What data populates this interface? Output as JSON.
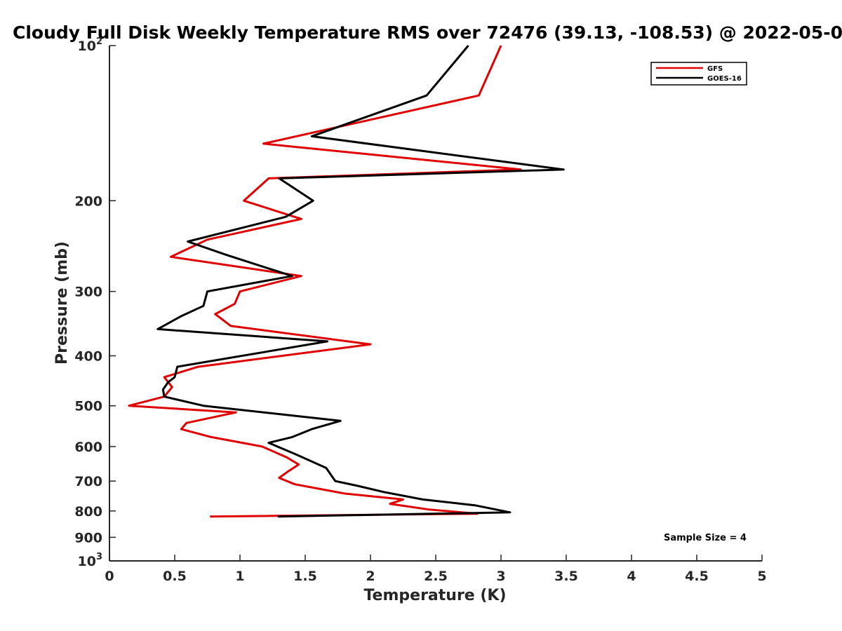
{
  "chart_data": {
    "type": "line",
    "title": "Cloudy Full Disk Weekly Temperature RMS over 72476 (39.13, -108.53) @ 2022-05-0",
    "xlabel": "Temperature (K)",
    "ylabel": "Pressure (mb)",
    "xlim": [
      0,
      5
    ],
    "ylim": [
      100,
      1000
    ],
    "yscale": "log",
    "yreversed": true,
    "grid": false,
    "legend_position": "top-right",
    "x_ticks": [
      "0",
      "0.5",
      "1",
      "1.5",
      "2",
      "2.5",
      "3",
      "3.5",
      "4",
      "4.5",
      "5"
    ],
    "x_tick_values": [
      0,
      0.5,
      1,
      1.5,
      2,
      2.5,
      3,
      3.5,
      4,
      4.5,
      5
    ],
    "y_ticks": [
      {
        "value": 100,
        "base": "10",
        "exp": "2"
      },
      {
        "value": 200,
        "label": "200"
      },
      {
        "value": 300,
        "label": "300"
      },
      {
        "value": 400,
        "label": "400"
      },
      {
        "value": 500,
        "label": "500"
      },
      {
        "value": 600,
        "label": "600"
      },
      {
        "value": 700,
        "label": "700"
      },
      {
        "value": 800,
        "label": "800"
      },
      {
        "value": 900,
        "label": "900"
      },
      {
        "value": 1000,
        "base": "10",
        "exp": "3"
      }
    ],
    "series": [
      {
        "name": "GFS",
        "color": "#e00000",
        "points": [
          [
            3.0,
            100
          ],
          [
            2.83,
            125
          ],
          [
            1.18,
            155
          ],
          [
            3.15,
            174
          ],
          [
            1.22,
            181
          ],
          [
            1.03,
            200
          ],
          [
            1.47,
            217
          ],
          [
            0.75,
            238
          ],
          [
            0.47,
            257
          ],
          [
            1.47,
            280
          ],
          [
            1.0,
            300
          ],
          [
            0.96,
            317
          ],
          [
            0.81,
            332
          ],
          [
            0.93,
            350
          ],
          [
            2.0,
            380
          ],
          [
            0.68,
            420
          ],
          [
            0.42,
            440
          ],
          [
            0.48,
            460
          ],
          [
            0.42,
            480
          ],
          [
            0.15,
            500
          ],
          [
            0.97,
            515
          ],
          [
            0.59,
            540
          ],
          [
            0.55,
            555
          ],
          [
            0.78,
            575
          ],
          [
            1.17,
            600
          ],
          [
            1.36,
            630
          ],
          [
            1.45,
            650
          ],
          [
            1.37,
            670
          ],
          [
            1.3,
            690
          ],
          [
            1.42,
            710
          ],
          [
            1.8,
            740
          ],
          [
            2.25,
            760
          ],
          [
            2.15,
            775
          ],
          [
            2.45,
            795
          ],
          [
            2.82,
            810
          ],
          [
            0.77,
            820
          ]
        ]
      },
      {
        "name": "GOES-16",
        "color": "#000000",
        "points": [
          [
            2.75,
            100
          ],
          [
            2.43,
            125
          ],
          [
            1.55,
            150
          ],
          [
            3.48,
            174
          ],
          [
            1.3,
            181
          ],
          [
            1.56,
            200
          ],
          [
            1.35,
            215
          ],
          [
            0.6,
            240
          ],
          [
            0.9,
            255
          ],
          [
            1.4,
            280
          ],
          [
            0.75,
            300
          ],
          [
            0.72,
            320
          ],
          [
            0.55,
            335
          ],
          [
            0.37,
            355
          ],
          [
            1.67,
            375
          ],
          [
            0.52,
            420
          ],
          [
            0.5,
            440
          ],
          [
            0.45,
            450
          ],
          [
            0.41,
            465
          ],
          [
            0.42,
            480
          ],
          [
            0.72,
            500
          ],
          [
            1.77,
            535
          ],
          [
            1.55,
            555
          ],
          [
            1.4,
            575
          ],
          [
            1.22,
            590
          ],
          [
            1.42,
            620
          ],
          [
            1.66,
            660
          ],
          [
            1.73,
            700
          ],
          [
            1.9,
            715
          ],
          [
            2.1,
            735
          ],
          [
            2.4,
            760
          ],
          [
            2.8,
            780
          ],
          [
            3.07,
            805
          ],
          [
            1.29,
            820
          ]
        ]
      }
    ],
    "annotations": [
      "Sample Size = 4"
    ]
  }
}
